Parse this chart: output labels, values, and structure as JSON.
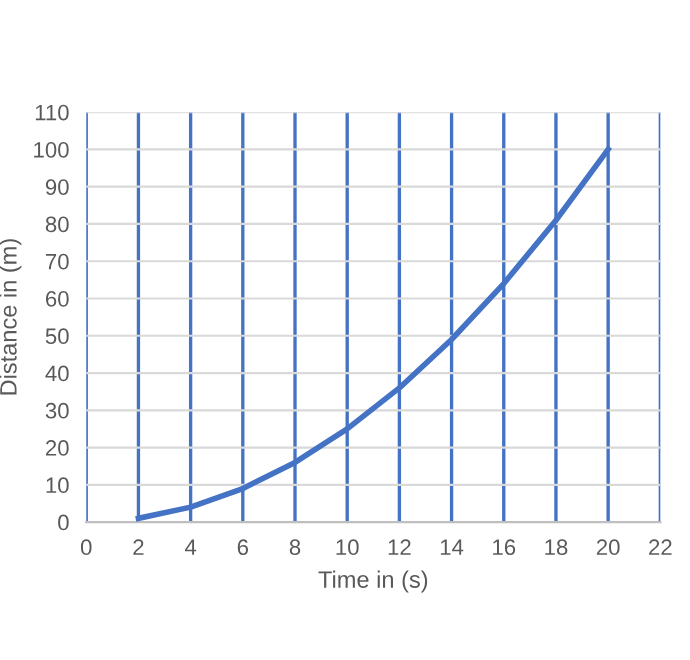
{
  "chart_data": {
    "type": "line",
    "xlabel": "Time in (s)",
    "ylabel": "Distance in (m)",
    "x": [
      2,
      4,
      6,
      8,
      10,
      12,
      14,
      16,
      18,
      20
    ],
    "series": [
      {
        "color": "#4472c4",
        "values": [
          1,
          4,
          9,
          16,
          25,
          36,
          49,
          64,
          81,
          100
        ]
      }
    ],
    "xlim": [
      0,
      22
    ],
    "xticks": [
      0,
      2,
      4,
      6,
      8,
      10,
      12,
      14,
      16,
      18,
      20,
      22
    ],
    "ylim": [
      0,
      110
    ],
    "yticks": [
      0,
      10,
      20,
      30,
      40,
      50,
      60,
      70,
      80,
      90,
      100,
      110
    ],
    "grid": true,
    "marker": "none",
    "line_style": "solid",
    "legend": false
  }
}
